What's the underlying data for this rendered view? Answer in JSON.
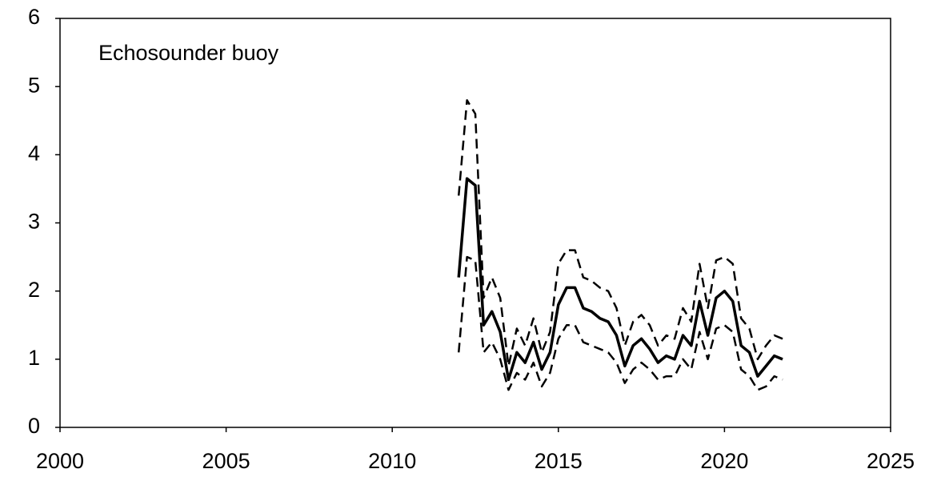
{
  "chart_data": {
    "type": "line",
    "annotation": "Echosounder buoy",
    "x": [
      2012,
      2012.25,
      2012.5,
      2012.75,
      2013,
      2013.25,
      2013.5,
      2013.75,
      2014,
      2014.25,
      2014.5,
      2014.75,
      2015,
      2015.25,
      2015.5,
      2015.75,
      2016,
      2016.25,
      2016.5,
      2016.75,
      2017,
      2017.25,
      2017.5,
      2017.75,
      2018,
      2018.25,
      2018.5,
      2018.75,
      2019,
      2019.25,
      2019.5,
      2019.75,
      2020,
      2020.25,
      2020.5,
      2020.75,
      2021,
      2021.25,
      2021.5,
      2021.75
    ],
    "series": [
      {
        "color": "#000000",
        "dashed": false,
        "values": [
          2.2,
          3.65,
          3.55,
          1.5,
          1.7,
          1.4,
          0.7,
          1.1,
          0.95,
          1.25,
          0.85,
          1.1,
          1.8,
          2.05,
          2.05,
          1.75,
          1.7,
          1.6,
          1.55,
          1.35,
          0.9,
          1.2,
          1.3,
          1.15,
          0.95,
          1.05,
          1.0,
          1.35,
          1.2,
          1.85,
          1.35,
          1.9,
          2.0,
          1.85,
          1.2,
          1.1,
          0.75,
          0.9,
          1.05,
          1.0
        ]
      },
      {
        "color": "#000000",
        "dashed": true,
        "values": [
          3.4,
          4.8,
          4.6,
          1.9,
          2.2,
          1.9,
          0.9,
          1.45,
          1.2,
          1.6,
          1.1,
          1.4,
          2.4,
          2.6,
          2.6,
          2.2,
          2.15,
          2.05,
          2.0,
          1.75,
          1.2,
          1.55,
          1.65,
          1.5,
          1.2,
          1.35,
          1.3,
          1.75,
          1.55,
          2.4,
          1.75,
          2.45,
          2.5,
          2.4,
          1.6,
          1.45,
          1.0,
          1.2,
          1.35,
          1.3
        ]
      },
      {
        "color": "#000000",
        "dashed": true,
        "values": [
          1.1,
          2.5,
          2.45,
          1.1,
          1.25,
          1.0,
          0.55,
          0.8,
          0.7,
          0.95,
          0.6,
          0.8,
          1.3,
          1.5,
          1.5,
          1.25,
          1.2,
          1.15,
          1.1,
          0.95,
          0.65,
          0.85,
          0.95,
          0.85,
          0.7,
          0.75,
          0.75,
          1.0,
          0.85,
          1.4,
          1.0,
          1.45,
          1.5,
          1.4,
          0.85,
          0.75,
          0.55,
          0.6,
          0.75,
          0.7
        ]
      }
    ],
    "xlim": [
      2000,
      2025
    ],
    "xticks": [
      2000,
      2005,
      2010,
      2015,
      2020,
      2025
    ],
    "ylim": [
      0,
      6
    ],
    "yticks": [
      0,
      1,
      2,
      3,
      4,
      5,
      6
    ],
    "grid": false
  }
}
